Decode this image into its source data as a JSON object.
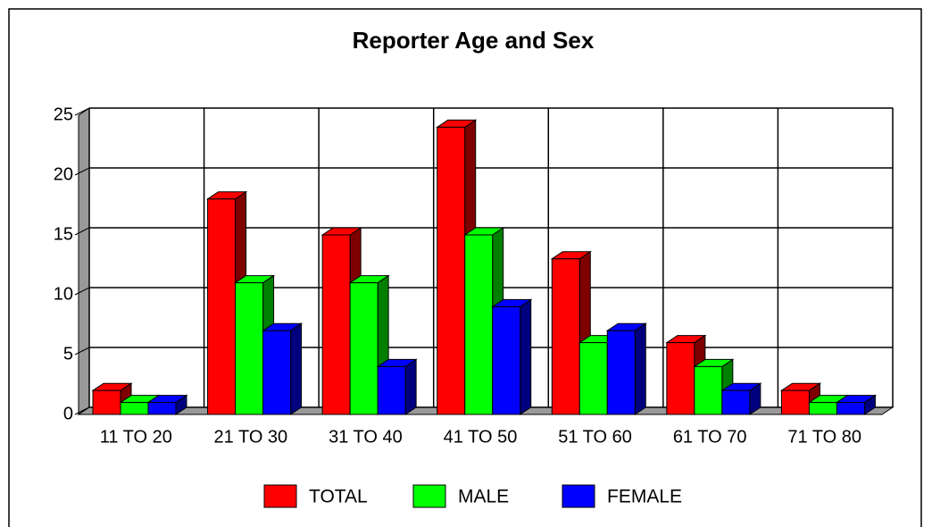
{
  "chart_data": {
    "type": "bar3d",
    "title": "Reporter Age and Sex",
    "categories": [
      "11 TO 20",
      "21 TO 30",
      "31 TO 40",
      "41 TO 50",
      "51 TO 60",
      "61 TO 70",
      "71 TO 80"
    ],
    "series": [
      {
        "name": "TOTAL",
        "color": "#ff0000",
        "values": [
          2,
          18,
          15,
          24,
          13,
          6,
          2
        ]
      },
      {
        "name": "MALE",
        "color": "#00ff00",
        "values": [
          1,
          11,
          11,
          15,
          6,
          4,
          1
        ]
      },
      {
        "name": "FEMALE",
        "color": "#0000ff",
        "values": [
          1,
          7,
          4,
          9,
          7,
          2,
          1
        ]
      }
    ],
    "ylim": [
      0,
      25
    ],
    "yticks": [
      0,
      5,
      10,
      15,
      20,
      25
    ],
    "grid": true,
    "legend": "bottom"
  }
}
